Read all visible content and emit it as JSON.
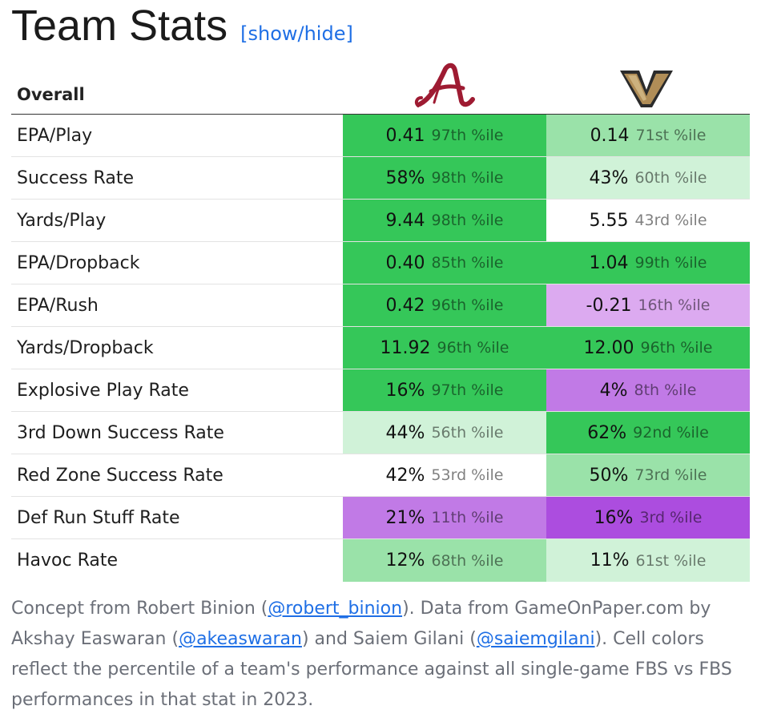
{
  "header": {
    "title": "Team Stats",
    "toggle_label": "[show/hide]"
  },
  "table": {
    "section_label": "Overall",
    "teams": [
      {
        "name": "Alabama",
        "logo_icon": "alabama-script-a-icon",
        "color": "#9e1b32"
      },
      {
        "name": "Vanderbilt",
        "logo_icon": "vanderbilt-star-v-icon",
        "color": "#866d4b"
      }
    ],
    "rows": [
      {
        "stat": "EPA/Play",
        "cells": [
          {
            "value": "0.41",
            "pct": "97th %ile",
            "color": "#35c759"
          },
          {
            "value": "0.14",
            "pct": "71st %ile",
            "color": "#9ae2a9"
          }
        ]
      },
      {
        "stat": "Success Rate",
        "cells": [
          {
            "value": "58%",
            "pct": "98th %ile",
            "color": "#35c759"
          },
          {
            "value": "43%",
            "pct": "60th %ile",
            "color": "#d0f2d8"
          }
        ]
      },
      {
        "stat": "Yards/Play",
        "cells": [
          {
            "value": "9.44",
            "pct": "98th %ile",
            "color": "#35c759"
          },
          {
            "value": "5.55",
            "pct": "43rd %ile",
            "color": "#ffffff"
          }
        ]
      },
      {
        "stat": "EPA/Dropback",
        "cells": [
          {
            "value": "0.40",
            "pct": "85th %ile",
            "color": "#35c759"
          },
          {
            "value": "1.04",
            "pct": "99th %ile",
            "color": "#35c759"
          }
        ]
      },
      {
        "stat": "EPA/Rush",
        "cells": [
          {
            "value": "0.42",
            "pct": "96th %ile",
            "color": "#35c759"
          },
          {
            "value": "-0.21",
            "pct": "16th %ile",
            "color": "#dcaaf0"
          }
        ]
      },
      {
        "stat": "Yards/Dropback",
        "cells": [
          {
            "value": "11.92",
            "pct": "96th %ile",
            "color": "#35c759"
          },
          {
            "value": "12.00",
            "pct": "96th %ile",
            "color": "#35c759"
          }
        ]
      },
      {
        "stat": "Explosive Play Rate",
        "cells": [
          {
            "value": "16%",
            "pct": "97th %ile",
            "color": "#35c759"
          },
          {
            "value": "4%",
            "pct": "8th %ile",
            "color": "#c17ae6"
          }
        ]
      },
      {
        "stat": "3rd Down Success Rate",
        "cells": [
          {
            "value": "44%",
            "pct": "56th %ile",
            "color": "#d0f2d8"
          },
          {
            "value": "62%",
            "pct": "92nd %ile",
            "color": "#35c759"
          }
        ]
      },
      {
        "stat": "Red Zone Success Rate",
        "cells": [
          {
            "value": "42%",
            "pct": "53rd %ile",
            "color": "#ffffff"
          },
          {
            "value": "50%",
            "pct": "73rd %ile",
            "color": "#9ae2a9"
          }
        ]
      },
      {
        "stat": "Def Run Stuff Rate",
        "cells": [
          {
            "value": "21%",
            "pct": "11th %ile",
            "color": "#c17ae6"
          },
          {
            "value": "16%",
            "pct": "3rd %ile",
            "color": "#ac4ddf"
          }
        ]
      },
      {
        "stat": "Havoc Rate",
        "cells": [
          {
            "value": "12%",
            "pct": "68th %ile",
            "color": "#9ae2a9"
          },
          {
            "value": "11%",
            "pct": "61st %ile",
            "color": "#d0f2d8"
          }
        ]
      }
    ]
  },
  "footer": {
    "t1": "Concept from Robert Binion (",
    "link1": "@robert_binion",
    "t2": "). Data from GameOnPaper.com by Akshay Easwaran (",
    "link2": "@akeaswaran",
    "t3": ") and Saiem Gilani (",
    "link3": "@saiemgilani",
    "t4": "). Cell colors reflect the percentile of a team's performance against all single-game FBS vs FBS performances in that stat in 2023."
  }
}
